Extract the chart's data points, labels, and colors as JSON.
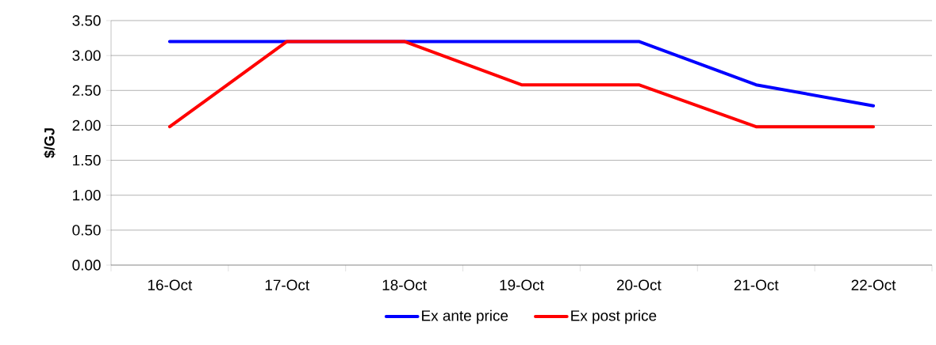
{
  "chart_data": {
    "type": "line",
    "ylabel": "$/GJ",
    "categories": [
      "16-Oct",
      "17-Oct",
      "18-Oct",
      "19-Oct",
      "20-Oct",
      "21-Oct",
      "22-Oct"
    ],
    "series": [
      {
        "name": "Ex ante price",
        "color": "#0000ff",
        "values": [
          3.2,
          3.2,
          3.2,
          3.2,
          3.2,
          2.58,
          2.28
        ]
      },
      {
        "name": "Ex post price",
        "color": "#ff0000",
        "values": [
          1.98,
          3.2,
          3.2,
          2.58,
          2.58,
          1.98,
          1.98
        ]
      }
    ],
    "ylim": [
      0,
      3.5
    ],
    "yticks": [
      {
        "value": 0,
        "label": "0.00"
      },
      {
        "value": 0.5,
        "label": "0.50"
      },
      {
        "value": 1,
        "label": "1.00"
      },
      {
        "value": 1.5,
        "label": "1.50"
      },
      {
        "value": 2,
        "label": "2.00"
      },
      {
        "value": 2.5,
        "label": "2.50"
      },
      {
        "value": 3,
        "label": "3.00"
      },
      {
        "value": 3.5,
        "label": "3.50"
      }
    ],
    "grid": "y",
    "legend": "bottom",
    "marker": "none",
    "line_style": "solid"
  }
}
